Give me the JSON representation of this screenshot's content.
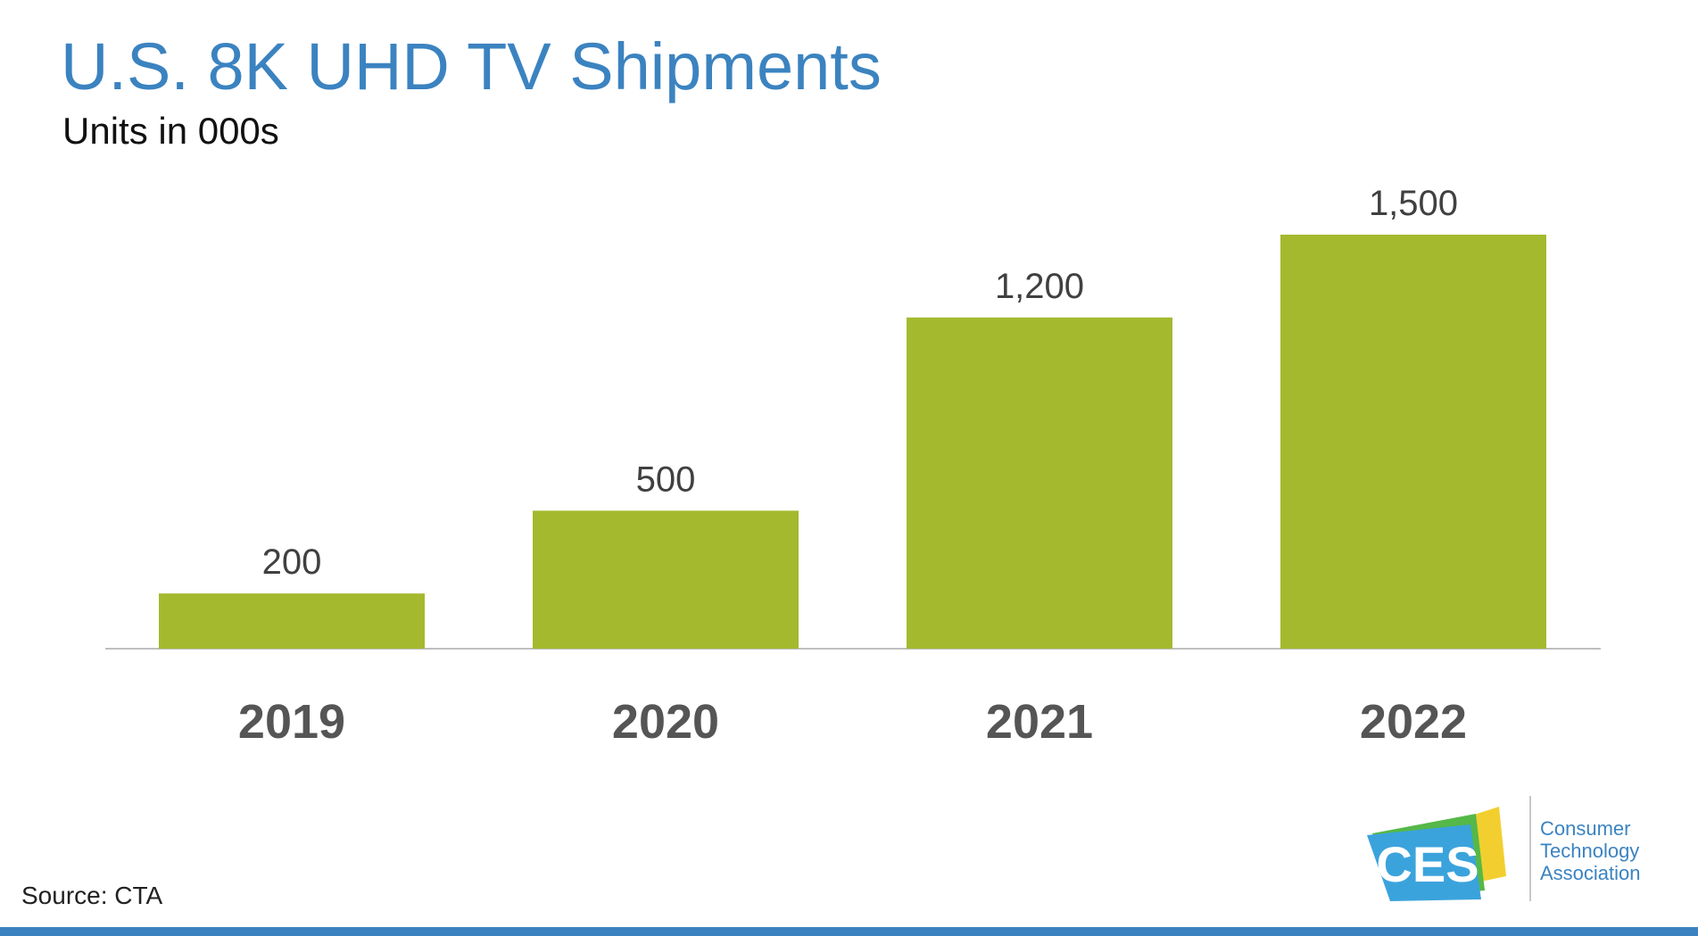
{
  "title": "U.S. 8K UHD TV Shipments",
  "subtitle": "Units in 000s",
  "source": "Source: CTA",
  "colors": {
    "title": "#3b83c0",
    "bar": "#a5b92e",
    "axis": "#bfbfbf",
    "label": "#404040",
    "category": "#555555",
    "footer": "#3b83c0"
  },
  "logo": {
    "mark": "CES",
    "line1": "Consumer",
    "line2": "Technology",
    "line3": "Association"
  },
  "chart_data": {
    "type": "bar",
    "title": "U.S. 8K UHD TV Shipments",
    "subtitle": "Units in 000s",
    "xlabel": "",
    "ylabel": "",
    "categories": [
      "2019",
      "2020",
      "2021",
      "2022"
    ],
    "values": [
      200,
      500,
      1200,
      1500
    ],
    "value_labels": [
      "200",
      "500",
      "1,200",
      "1,500"
    ],
    "ylim": [
      0,
      1500
    ],
    "grid": false,
    "legend": "none"
  }
}
